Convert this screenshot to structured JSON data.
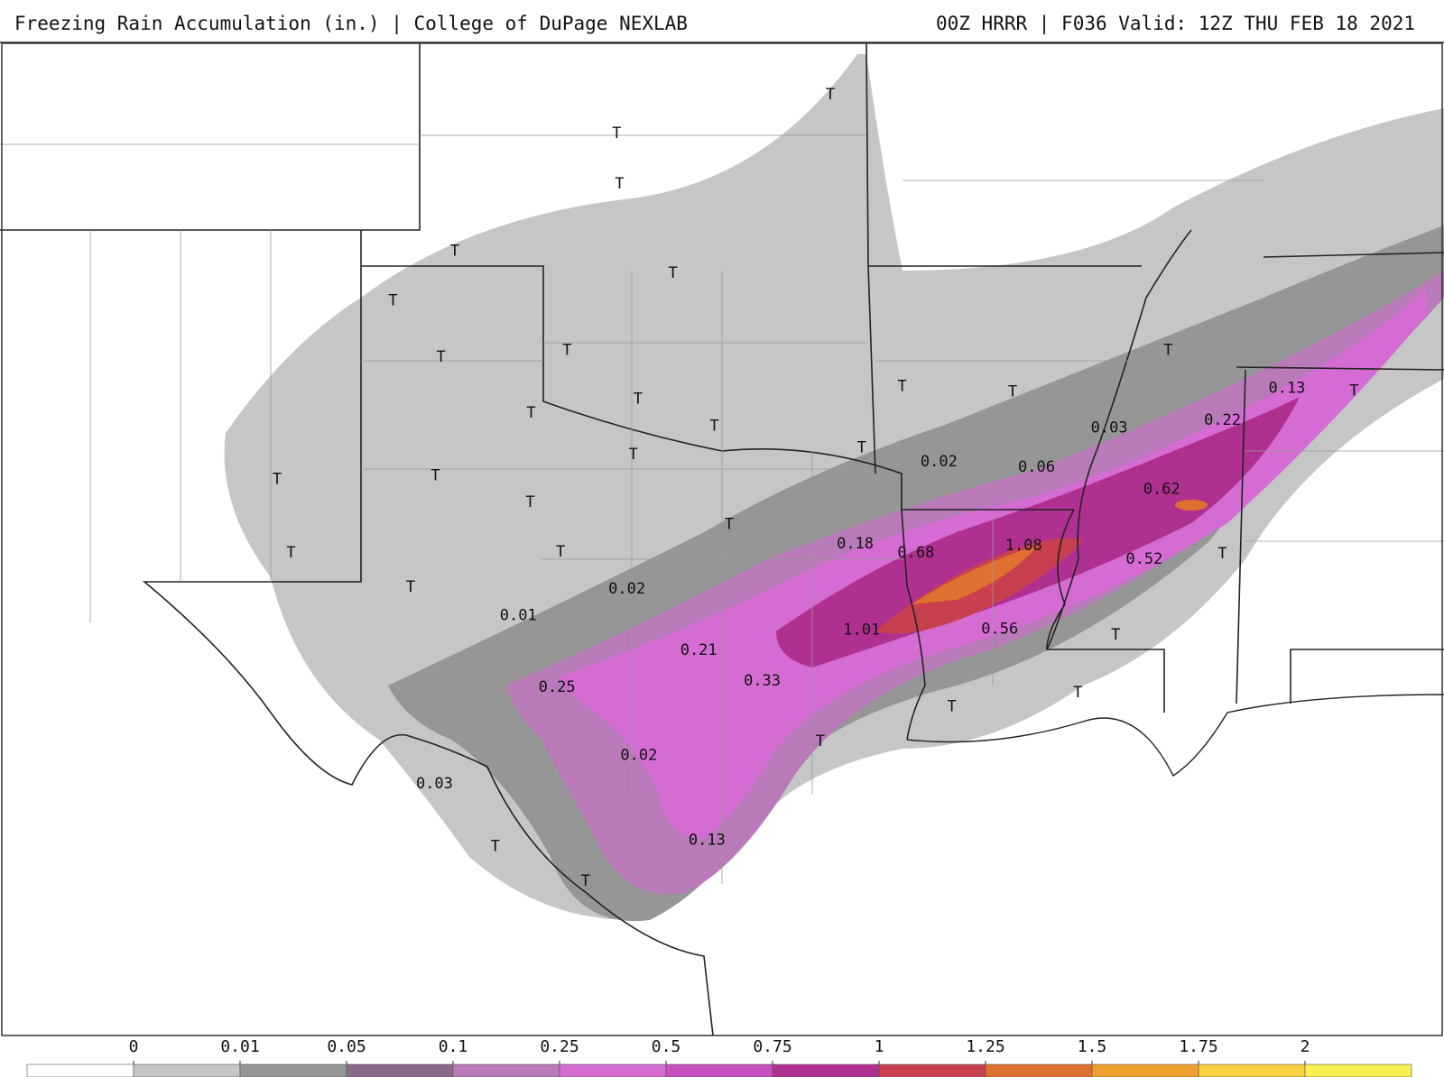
{
  "header": {
    "left": "Freezing Rain Accumulation (in.) | College of DuPage NEXLAB",
    "right": "00Z HRRR | F036 Valid: 12Z THU FEB 18 2021"
  },
  "map_labels": [
    0.13,
    0.22,
    0.03,
    0.06,
    0.02,
    0.62,
    0.18,
    0.68,
    1.08,
    0.52,
    0.02,
    0.01,
    1.01,
    0.56,
    0.21,
    0.33,
    0.25,
    0.02,
    0.03,
    0.13,
    "T",
    "T",
    "T",
    "T",
    "T",
    "T",
    "T",
    "T",
    "T",
    "T",
    "T",
    "T",
    "T",
    "T",
    "T",
    "T",
    "T",
    "T",
    "T",
    "T",
    "T",
    "T",
    "T",
    "T",
    "T",
    "T",
    "T",
    "T",
    "T",
    "T",
    "T"
  ],
  "colorbar": {
    "ticks": [
      0,
      0.01,
      0.05,
      0.1,
      0.25,
      0.5,
      0.75,
      1,
      1.25,
      1.5,
      1.75,
      2
    ],
    "colors": [
      "#ffffff",
      "#c6c6c6",
      "#969696",
      "#8a6a8a",
      "#b87ab8",
      "#d46cd4",
      "#c850c0",
      "#b03090",
      "#c84050",
      "#e07030",
      "#f0a030",
      "#f8d040",
      "#f8f050"
    ]
  }
}
